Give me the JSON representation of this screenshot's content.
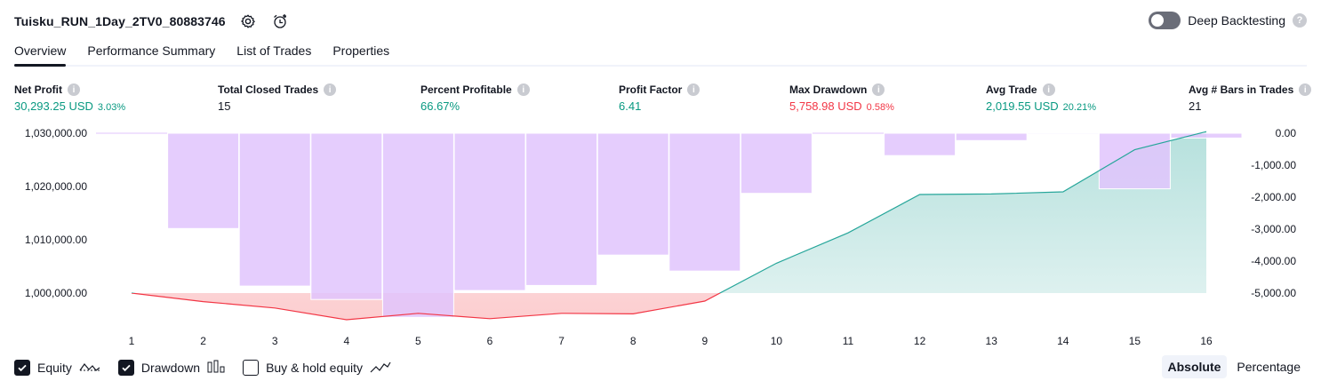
{
  "header": {
    "strategy_name": "Tuisku_RUN_1Day_2TV0_80883746",
    "settings_icon": "gear-icon",
    "alert_icon": "alarm-add-icon",
    "deep_backtesting_label": "Deep Backtesting",
    "deep_backtesting_enabled": false
  },
  "tabs": [
    {
      "label": "Overview",
      "active": true
    },
    {
      "label": "Performance Summary",
      "active": false
    },
    {
      "label": "List of Trades",
      "active": false
    },
    {
      "label": "Properties",
      "active": false
    }
  ],
  "stats": {
    "net_profit": {
      "label": "Net Profit",
      "value": "30,293.25 USD",
      "pct": "3.03%"
    },
    "total_closed_trades": {
      "label": "Total Closed Trades",
      "value": "15"
    },
    "percent_profitable": {
      "label": "Percent Profitable",
      "value": "66.67%"
    },
    "profit_factor": {
      "label": "Profit Factor",
      "value": "6.41"
    },
    "max_drawdown": {
      "label": "Max Drawdown",
      "value": "5,758.98 USD",
      "pct": "0.58%"
    },
    "avg_trade": {
      "label": "Avg Trade",
      "value": "2,019.55 USD",
      "pct": "20.21%"
    },
    "avg_bars": {
      "label": "Avg # Bars in Trades",
      "value": "21"
    }
  },
  "colors": {
    "equity_line": "#26a69a",
    "equity_fill": "#b2dfdb",
    "equity_below_line": "#f23645",
    "equity_below_fill": "#fccbcd",
    "drawdown_bar": "#e1c4fd",
    "drawdown_overlap": "#a9b4ec",
    "positive": "#089981",
    "negative": "#f23645"
  },
  "chart_data": {
    "type": "line",
    "x": [
      1,
      2,
      3,
      4,
      5,
      6,
      7,
      8,
      9,
      10,
      11,
      12,
      13,
      14,
      15,
      16
    ],
    "left_axis": {
      "ticks": [
        "1,030,000.00",
        "1,020,000.00",
        "1,010,000.00",
        "1,000,000.00"
      ],
      "tick_values": [
        1030000,
        1020000,
        1010000,
        1000000
      ],
      "ylim": [
        995000,
        1030000
      ]
    },
    "right_axis": {
      "ticks": [
        "0.00",
        "-1,000.00",
        "-2,000.00",
        "-3,000.00",
        "-4,000.00",
        "-5,000.00"
      ],
      "tick_values": [
        0,
        -1000,
        -2000,
        -3000,
        -4000,
        -5000
      ],
      "ylim": [
        -5800,
        0
      ]
    },
    "series": [
      {
        "name": "Equity",
        "axis": "left",
        "baseline": 1000000,
        "values": [
          1000000,
          998400,
          997200,
          995000,
          996200,
          995200,
          996200,
          996100,
          998500,
          1005600,
          1011300,
          1018500,
          1018600,
          1019000,
          1026900,
          1030293.25
        ]
      },
      {
        "name": "Drawdown",
        "axis": "right",
        "type": "bar",
        "values": [
          0,
          -2980,
          -4780,
          -5200,
          -5758.98,
          -4920,
          -4760,
          -3810,
          -4310,
          -1880,
          0,
          -700,
          -230,
          -30,
          -1740,
          -150
        ]
      }
    ],
    "legend": [
      {
        "name": "Equity",
        "checked": true,
        "icon": "equity-line-icon"
      },
      {
        "name": "Drawdown",
        "checked": true,
        "icon": "drawdown-bars-icon"
      },
      {
        "name": "Buy & hold equity",
        "checked": false,
        "icon": "buy-hold-line-icon"
      }
    ],
    "legend_placement": "bottom-left"
  },
  "modes": [
    {
      "label": "Absolute",
      "active": true
    },
    {
      "label": "Percentage",
      "active": false
    }
  ]
}
